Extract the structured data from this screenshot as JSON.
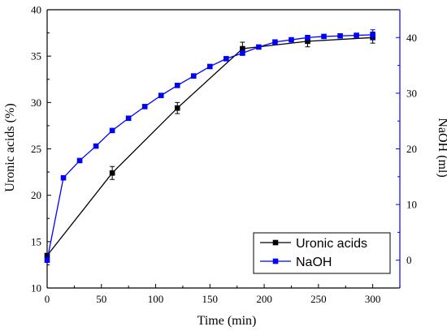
{
  "chart_data": {
    "type": "line",
    "xlabel": "Time (min)",
    "ylabel": "Uronic acids (%)",
    "y2label": "NaOH (ml)",
    "xlim": [
      0,
      325
    ],
    "ylim": [
      10,
      40
    ],
    "y2lim": [
      -5,
      45
    ],
    "xticks": [
      0,
      50,
      100,
      150,
      200,
      250,
      300
    ],
    "yticks": [
      10,
      15,
      20,
      25,
      30,
      35,
      40
    ],
    "y2ticks": [
      0,
      10,
      20,
      30,
      40
    ],
    "grid": false,
    "legend_position": "bottom-right",
    "series": [
      {
        "name": "Uronic acids",
        "axis": "left",
        "color": "#000000",
        "x": [
          0,
          60,
          120,
          180,
          240,
          300
        ],
        "y": [
          13.5,
          22.4,
          29.4,
          35.8,
          36.6,
          37.0
        ],
        "err": [
          0,
          0.7,
          0.6,
          0.7,
          0.6,
          0.6
        ]
      },
      {
        "name": "NaOH",
        "axis": "right",
        "color": "#0000ff",
        "x": [
          0,
          15,
          30,
          45,
          60,
          75,
          90,
          105,
          120,
          135,
          150,
          165,
          180,
          195,
          210,
          225,
          240,
          255,
          270,
          285,
          300
        ],
        "y": [
          0,
          14.8,
          17.9,
          20.5,
          23.3,
          25.5,
          27.6,
          29.6,
          31.4,
          33.1,
          34.8,
          36.2,
          37.2,
          38.3,
          39.2,
          39.6,
          40.0,
          40.2,
          40.3,
          40.4,
          40.5
        ],
        "err": [
          0,
          0,
          0,
          0,
          0,
          0,
          0,
          0,
          0,
          0,
          0,
          0,
          0,
          0,
          0,
          0,
          0,
          0,
          0,
          0,
          0.9
        ]
      }
    ]
  }
}
